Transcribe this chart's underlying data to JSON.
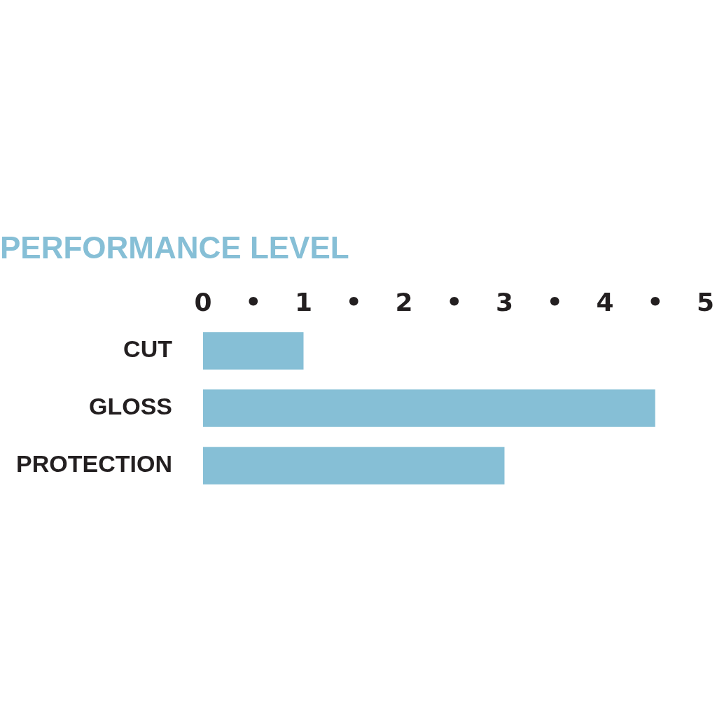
{
  "chart_data": {
    "type": "bar",
    "orientation": "horizontal",
    "title": "PERFORMANCE LEVEL",
    "categories": [
      "CUT",
      "GLOSS",
      "PROTECTION"
    ],
    "values": [
      1,
      4.5,
      3
    ],
    "color": "#86bfd6",
    "xlim": [
      0,
      5
    ],
    "xticks": [
      0,
      {
        "value": 0.5,
        "label": "•"
      },
      1,
      {
        "value": 1.5,
        "label": "•"
      },
      2,
      {
        "value": 2.5,
        "label": "•"
      },
      3,
      {
        "value": 3.5,
        "label": "•"
      },
      4,
      {
        "value": 4.5,
        "label": "•"
      },
      5
    ],
    "grid": false
  }
}
